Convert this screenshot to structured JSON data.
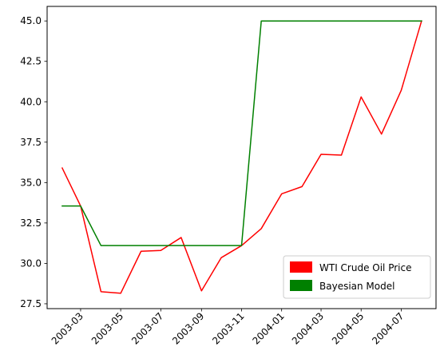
{
  "chart_data": {
    "type": "line",
    "title": "",
    "xlabel": "",
    "ylabel": "",
    "x": [
      "2003-02",
      "2003-03",
      "2003-04",
      "2003-05",
      "2003-06",
      "2003-07",
      "2003-08",
      "2003-09",
      "2003-10",
      "2003-11",
      "2003-12",
      "2004-01",
      "2004-02",
      "2004-03",
      "2004-04",
      "2004-05",
      "2004-06",
      "2004-07",
      "2004-08"
    ],
    "series": [
      {
        "name": "WTI Crude Oil Price",
        "color": "#ff0000",
        "values": [
          35.9,
          33.55,
          28.25,
          28.15,
          30.75,
          30.8,
          31.6,
          28.3,
          30.35,
          31.1,
          32.15,
          34.3,
          34.75,
          36.75,
          36.7,
          40.3,
          38.0,
          40.7,
          45.0
        ]
      },
      {
        "name": "Bayesian Model",
        "color": "#008000",
        "values": [
          33.55,
          33.55,
          31.1,
          31.1,
          31.1,
          31.1,
          31.1,
          31.1,
          31.1,
          31.1,
          45.0,
          45.0,
          45.0,
          45.0,
          45.0,
          45.0,
          45.0,
          45.0,
          45.0
        ]
      }
    ],
    "ylim": [
      27.2,
      45.9
    ],
    "xlim": [
      "2003-01-09",
      "2004-08-23"
    ],
    "yticks": [
      27.5,
      30.0,
      32.5,
      35.0,
      37.5,
      40.0,
      42.5,
      45.0
    ],
    "ytick_labels": [
      "27.5",
      "30.0",
      "32.5",
      "35.0",
      "37.5",
      "40.0",
      "42.5",
      "45.0"
    ],
    "xticks": [
      "2003-03",
      "2003-05",
      "2003-07",
      "2003-09",
      "2003-11",
      "2004-01",
      "2004-03",
      "2004-05",
      "2004-07"
    ],
    "xtick_labels": [
      "2003-03",
      "2003-05",
      "2003-07",
      "2003-09",
      "2003-11",
      "2004-01",
      "2004-03",
      "2004-05",
      "2004-07"
    ],
    "grid": false,
    "legend": {
      "position": "lower-right",
      "entries": [
        "WTI Crude Oil Price",
        "Bayesian Model"
      ]
    }
  }
}
